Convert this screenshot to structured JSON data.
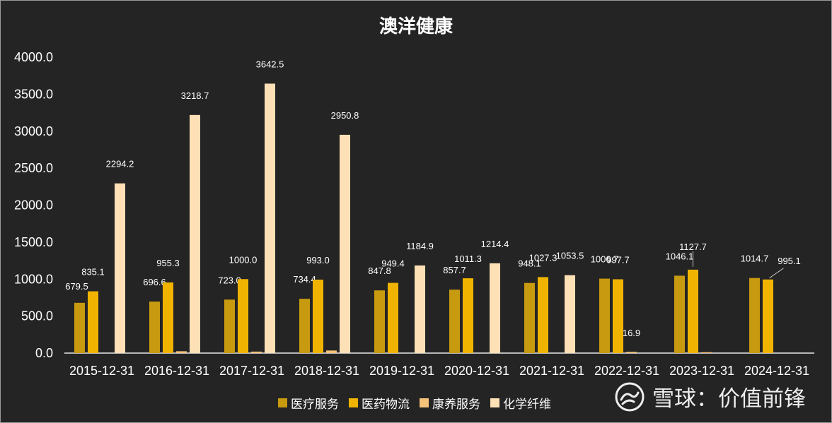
{
  "chart_data": {
    "type": "bar",
    "title": "澳洋健康",
    "categories": [
      "2015-12-31",
      "2016-12-31",
      "2017-12-31",
      "2018-12-31",
      "2019-12-31",
      "2020-12-31",
      "2021-12-31",
      "2022-12-31",
      "2023-12-31",
      "2024-12-31"
    ],
    "series": [
      {
        "name": "医疗服务",
        "color": "#c89a10",
        "values": [
          679.5,
          696.6,
          723.0,
          734.4,
          847.8,
          857.7,
          948.1,
          1006.7,
          1046.1,
          1014.7
        ],
        "labels": [
          "679.5",
          "696.6",
          "723.0",
          "734.4",
          "847.8",
          "857.7",
          "948.1",
          "1006.7",
          "1046.1",
          "1014.7"
        ]
      },
      {
        "name": "医药物流",
        "color": "#f0b400",
        "values": [
          835.1,
          955.3,
          1000.0,
          993.0,
          949.4,
          1011.3,
          1027.3,
          997.7,
          1127.7,
          995.1
        ],
        "labels": [
          "835.1",
          "955.3",
          "1000.0",
          "993.0",
          "949.4",
          "1011.3",
          "1027.3",
          "997.7",
          "1127.7",
          "995.1"
        ]
      },
      {
        "name": "康养服务",
        "color": "#f5c27a",
        "values": [
          null,
          25,
          20,
          35,
          null,
          null,
          null,
          16.9,
          12,
          null
        ],
        "labels": [
          "",
          "",
          "",
          "",
          "",
          "",
          "",
          "16.9",
          "",
          ""
        ]
      },
      {
        "name": "化学纤维",
        "color": "#fde0b6",
        "values": [
          2294.2,
          3218.7,
          3642.5,
          2950.8,
          1184.9,
          1214.4,
          1053.5,
          null,
          null,
          null
        ],
        "labels": [
          "2294.2",
          "3218.7",
          "3642.5",
          "2950.8",
          "1184.9",
          "1214.4",
          "1053.5",
          "",
          "",
          ""
        ]
      }
    ],
    "yticks": [
      "0.0",
      "500.0",
      "1000.0",
      "1500.0",
      "2000.0",
      "2500.0",
      "3000.0",
      "3500.0",
      "4000.0"
    ],
    "ylim": [
      0,
      4000
    ],
    "legend": "bottom"
  },
  "watermark": {
    "text": "雪球：价值前锋",
    "icon": "snowball-logo-icon"
  }
}
